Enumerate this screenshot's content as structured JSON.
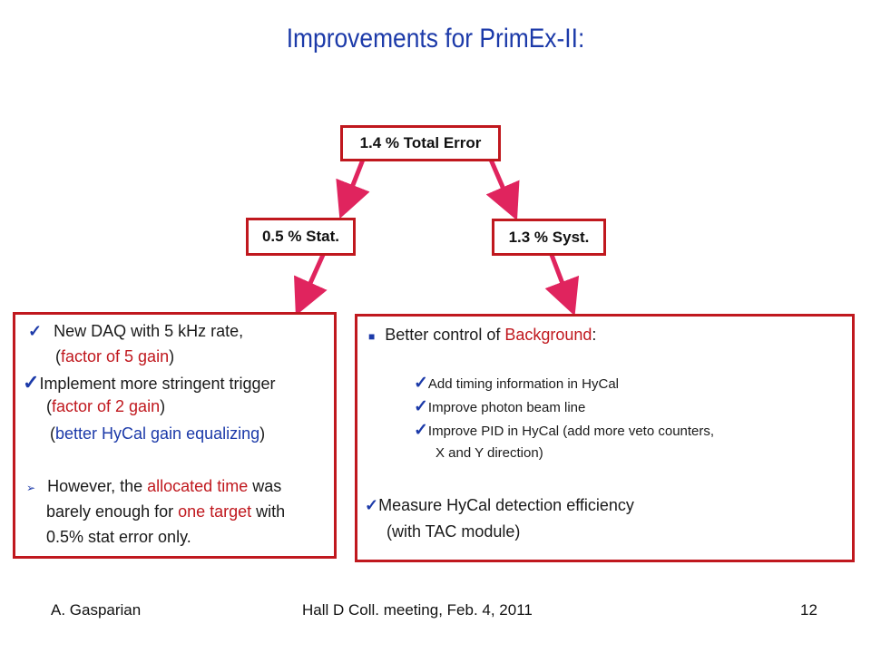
{
  "slide": {
    "title": "Improvements for PrimEx-II:",
    "top_node": "1.4 % Total Error",
    "stat_node": "0.5 % Stat.",
    "syst_node": "1.3 % Syst."
  },
  "colors": {
    "accent_red": "#c0181e",
    "title_blue": "#1c3aa9",
    "arrow_pink": "#e0245e"
  },
  "left_panel": {
    "item1_text": "New DAQ with 5 kHz rate,",
    "item1_open": "(",
    "item1_red": "factor of 5 gain",
    "item1_close": ")",
    "item2_text": "Implement more stringent trigger",
    "item2_open": "(",
    "item2_red": "factor of 2 gain",
    "item2_close": ")",
    "item2_open2": "(",
    "item2_blue": "better HyCal gain equalizing",
    "item2_close2": ")",
    "item3_pre": "However, the ",
    "item3_red": "allocated time",
    "item3_post": " was",
    "item3_line2_pre": "barely enough for ",
    "item3_line2_red": "one target",
    "item3_line2_post": " with",
    "item3_line3": "0.5% stat error only."
  },
  "right_panel": {
    "heading_pre": "Better control of ",
    "heading_red": "Background",
    "heading_post": ":",
    "sub1": "Add timing information in HyCal",
    "sub2": "Improve photon beam line",
    "sub3": "Improve PID in HyCal (add more veto counters,",
    "sub3_cont": "X and Y direction)",
    "item2": "Measure HyCal detection efficiency",
    "item2_cont": "(with TAC module)"
  },
  "footer": {
    "author": "A. Gasparian",
    "event": "Hall D Coll. meeting, Feb. 4, 2011",
    "page": "12"
  }
}
